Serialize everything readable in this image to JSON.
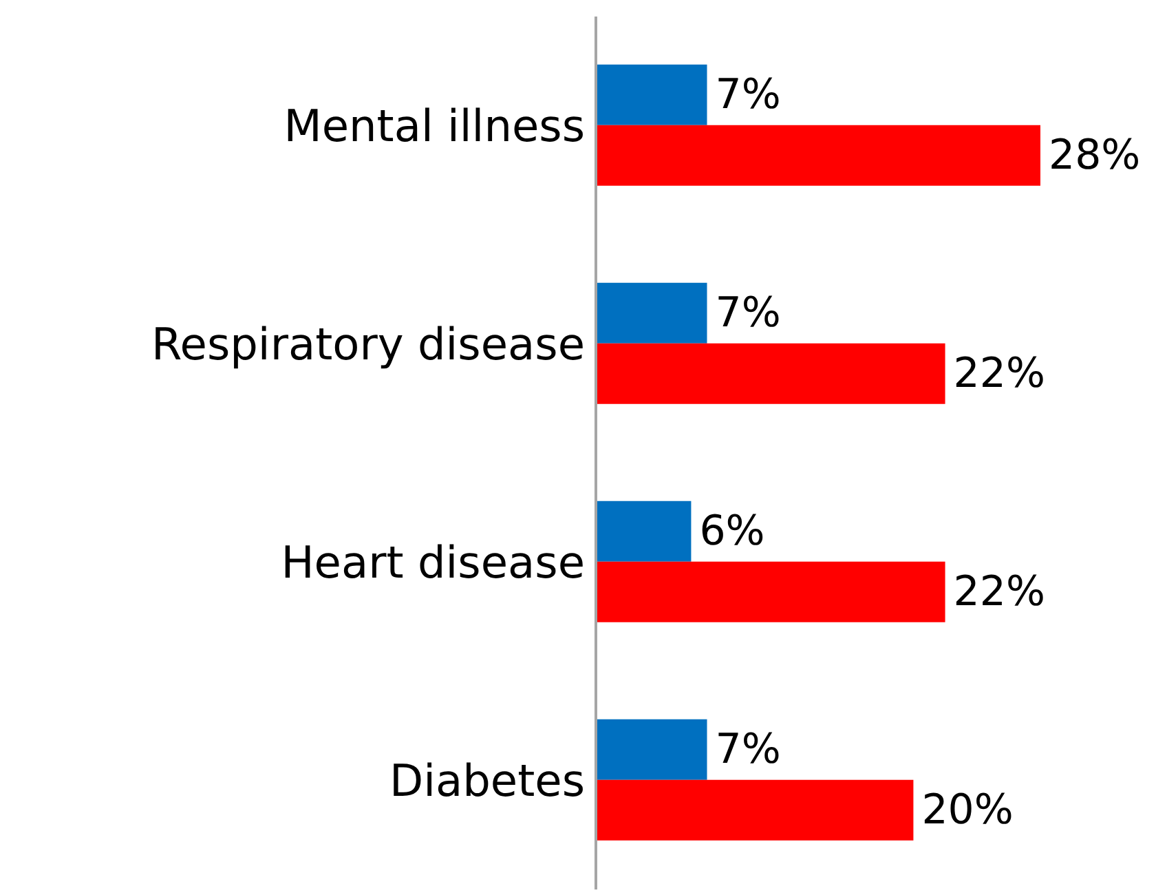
{
  "chart_data": {
    "type": "bar",
    "orientation": "horizontal",
    "categories": [
      "Mental illness",
      "Respiratory disease",
      "Heart disease",
      "Diabetes"
    ],
    "series": [
      {
        "color": "#0070c0",
        "values": [
          7,
          7,
          6,
          7
        ],
        "value_labels": [
          "7%",
          "7%",
          "6%",
          "7%"
        ]
      },
      {
        "color": "#ff0000",
        "values": [
          28,
          22,
          22,
          20
        ],
        "value_labels": [
          "28%",
          "22%",
          "22%",
          "20%"
        ]
      }
    ],
    "grid": false,
    "legend": false
  }
}
